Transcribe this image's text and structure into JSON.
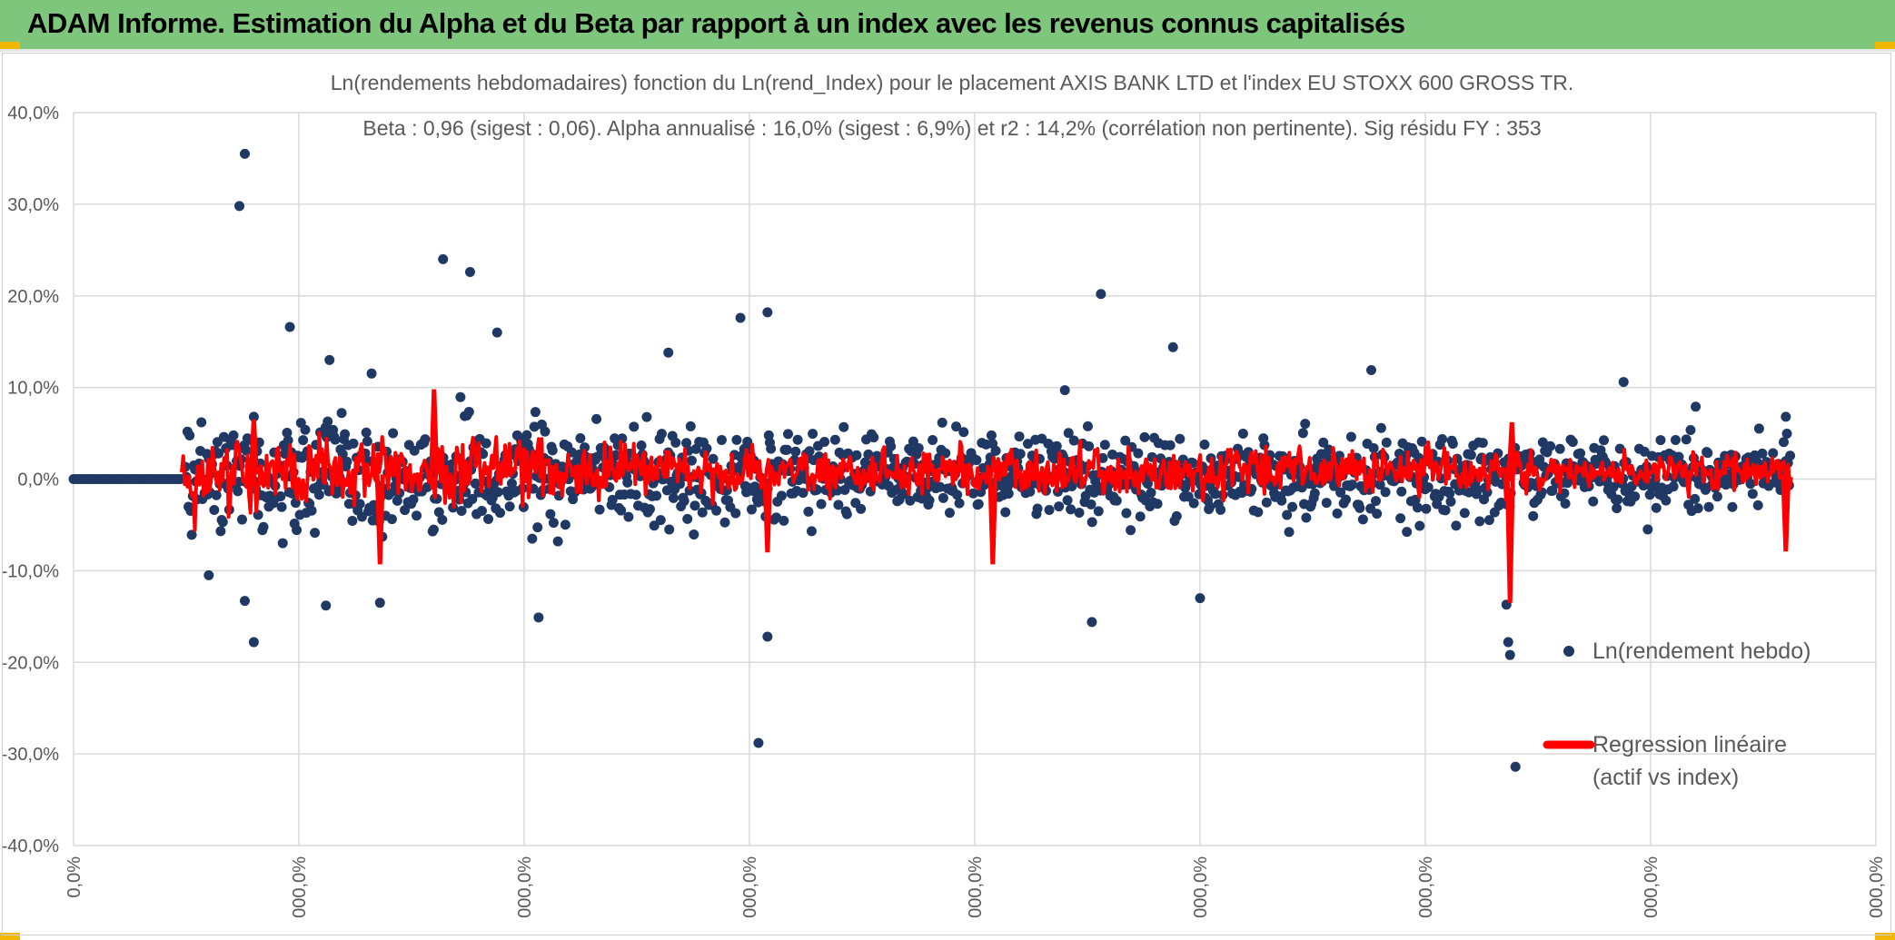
{
  "banner": {
    "title": "ADAM Informe. Estimation du Alpha et du Beta par rapport à un index avec les revenus connus capitalisés",
    "color": "#7dc67b"
  },
  "chart_data": {
    "type": "scatter",
    "title": "Ln(rendements hebdomadaires) fonction du Ln(rend_Index) pour le placement AXIS BANK LTD et l'index EU STOXX 600 GROSS TR.",
    "subtitle": "Beta : 0,96 (sigest : 0,06). Alpha annualisé : 16,0% (sigest : 6,9%) et r2 : 14,2% (corrélation non pertinente). Sig résidu FY : 353",
    "xlabel": "",
    "ylabel": "",
    "ylim": [
      -40,
      40
    ],
    "y_ticks": [
      "40,0%",
      "30,0%",
      "20,0%",
      "10,0%",
      "0,0%",
      "-10,0%",
      "-20,0%",
      "-30,0%",
      "-40,0%"
    ],
    "x_ticks": [
      "0,0%",
      "000,0%",
      "000,0%",
      "000,0%",
      "000,0%",
      "000,0%",
      "000,0%",
      "000,0%",
      "000,0%"
    ],
    "grid": true,
    "legend_position": "right",
    "series": [
      {
        "name": "Ln(rendement hebdo)",
        "color": "#203864",
        "marker": "dot"
      },
      {
        "name": "Regression linéaire (actif vs index)",
        "color": "#ff0000",
        "marker": "line"
      }
    ],
    "legend": {
      "scatter_label": "Ln(rendement hebdo)",
      "regression_label_line1": "Regression linéaire",
      "regression_label_line2": "(actif vs index)"
    },
    "notable_points": [
      {
        "x": 0.095,
        "y": 35.5
      },
      {
        "x": 0.092,
        "y": 29.8
      },
      {
        "x": 0.205,
        "y": 24.0
      },
      {
        "x": 0.22,
        "y": 22.6
      },
      {
        "x": 0.57,
        "y": 20.2
      },
      {
        "x": 0.385,
        "y": 18.2
      },
      {
        "x": 0.37,
        "y": 17.6
      },
      {
        "x": 0.12,
        "y": 16.6
      },
      {
        "x": 0.235,
        "y": 16.0
      },
      {
        "x": 0.142,
        "y": 13.0
      },
      {
        "x": 0.33,
        "y": 13.8
      },
      {
        "x": 0.61,
        "y": 14.4
      },
      {
        "x": 0.38,
        "y": -28.8
      },
      {
        "x": 0.8,
        "y": -31.4
      },
      {
        "x": 0.797,
        "y": -19.2
      },
      {
        "x": 0.796,
        "y": -17.8
      },
      {
        "x": 0.1,
        "y": -17.8
      },
      {
        "x": 0.258,
        "y": -15.1
      },
      {
        "x": 0.565,
        "y": -15.6
      },
      {
        "x": 0.385,
        "y": -17.2
      },
      {
        "x": 0.14,
        "y": -13.8
      },
      {
        "x": 0.17,
        "y": -13.5
      },
      {
        "x": 0.075,
        "y": -10.5
      },
      {
        "x": 0.095,
        "y": -13.3
      },
      {
        "x": 0.625,
        "y": -13.0
      },
      {
        "x": 0.795,
        "y": -13.7
      },
      {
        "x": 0.72,
        "y": 11.9
      },
      {
        "x": 0.86,
        "y": 10.6
      },
      {
        "x": 0.9,
        "y": 7.9
      },
      {
        "x": 0.95,
        "y": 6.8
      },
      {
        "x": 0.55,
        "y": 9.7
      }
    ],
    "regression_spikes": [
      {
        "x": 0.797,
        "y": -13.5
      },
      {
        "x": 0.798,
        "y": 6.2
      },
      {
        "x": 0.2,
        "y": 9.8
      },
      {
        "x": 0.17,
        "y": -9.3
      },
      {
        "x": 0.385,
        "y": -8.0
      },
      {
        "x": 0.95,
        "y": -7.9
      },
      {
        "x": 0.51,
        "y": -9.3
      },
      {
        "x": 0.1,
        "y": 6.5
      }
    ]
  }
}
